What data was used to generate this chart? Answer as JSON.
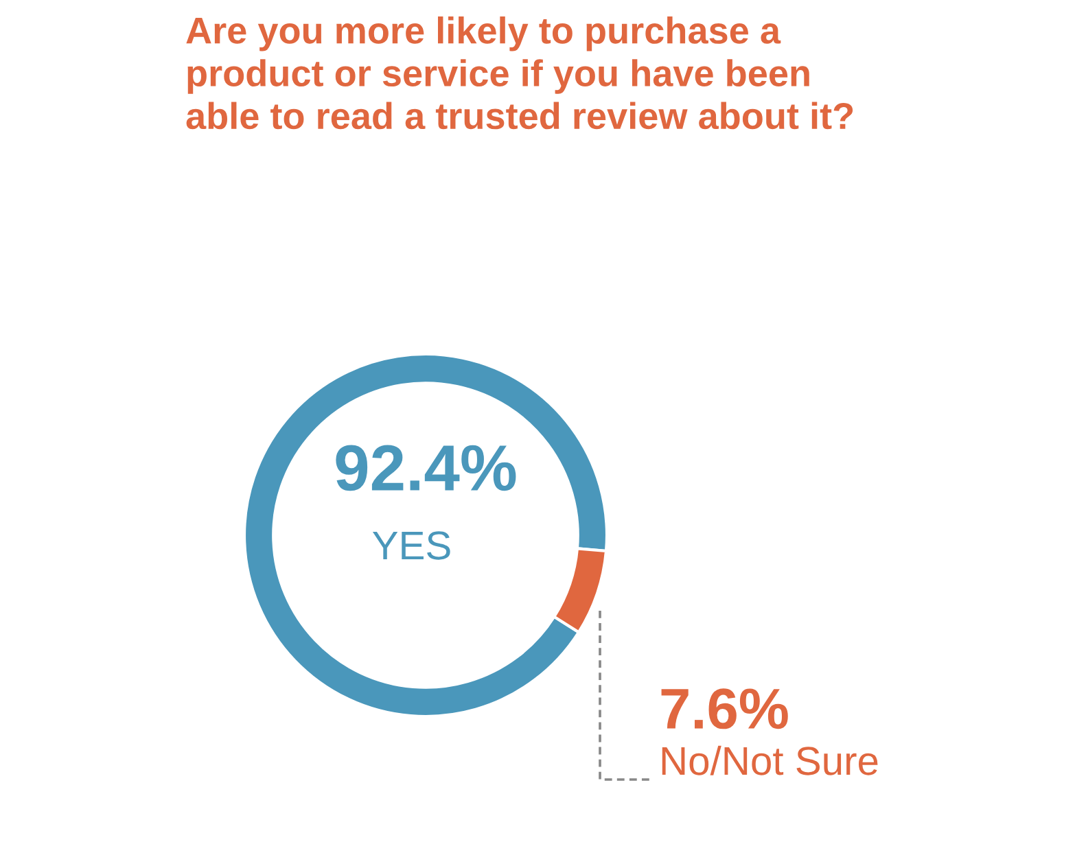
{
  "chart_data": {
    "type": "donut",
    "title": "Are you more likely to purchase a\nproduct or service if you have been\nable to read a trusted review about it?",
    "categories": [
      "YES",
      "No/Not Sure"
    ],
    "values": [
      92.4,
      7.6
    ],
    "colors": [
      "#4a97bb",
      "#e0673f"
    ],
    "value_labels": [
      "92.4%",
      "7.6%"
    ]
  }
}
